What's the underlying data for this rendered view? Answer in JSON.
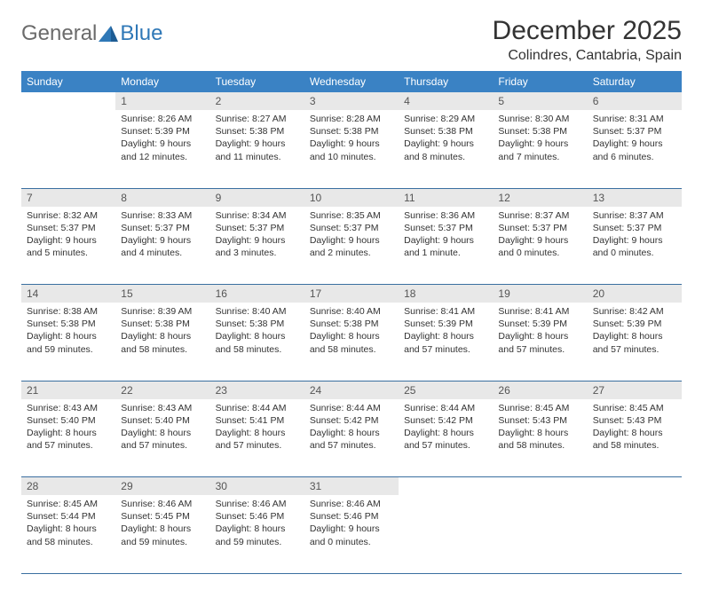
{
  "logo": {
    "text1": "General",
    "text2": "Blue"
  },
  "title": "December 2025",
  "location": "Colindres, Cantabria, Spain",
  "colors": {
    "header_bg": "#3a82c4",
    "header_text": "#ffffff",
    "daynum_bg": "#e8e8e8",
    "row_border": "#3a6fa0",
    "logo_gray": "#6b6b6b",
    "logo_blue": "#2f78b7"
  },
  "day_headers": [
    "Sunday",
    "Monday",
    "Tuesday",
    "Wednesday",
    "Thursday",
    "Friday",
    "Saturday"
  ],
  "weeks": [
    {
      "nums": [
        "",
        "1",
        "2",
        "3",
        "4",
        "5",
        "6"
      ],
      "cells": [
        null,
        {
          "sunrise": "Sunrise: 8:26 AM",
          "sunset": "Sunset: 5:39 PM",
          "day1": "Daylight: 9 hours",
          "day2": "and 12 minutes."
        },
        {
          "sunrise": "Sunrise: 8:27 AM",
          "sunset": "Sunset: 5:38 PM",
          "day1": "Daylight: 9 hours",
          "day2": "and 11 minutes."
        },
        {
          "sunrise": "Sunrise: 8:28 AM",
          "sunset": "Sunset: 5:38 PM",
          "day1": "Daylight: 9 hours",
          "day2": "and 10 minutes."
        },
        {
          "sunrise": "Sunrise: 8:29 AM",
          "sunset": "Sunset: 5:38 PM",
          "day1": "Daylight: 9 hours",
          "day2": "and 8 minutes."
        },
        {
          "sunrise": "Sunrise: 8:30 AM",
          "sunset": "Sunset: 5:38 PM",
          "day1": "Daylight: 9 hours",
          "day2": "and 7 minutes."
        },
        {
          "sunrise": "Sunrise: 8:31 AM",
          "sunset": "Sunset: 5:37 PM",
          "day1": "Daylight: 9 hours",
          "day2": "and 6 minutes."
        }
      ]
    },
    {
      "nums": [
        "7",
        "8",
        "9",
        "10",
        "11",
        "12",
        "13"
      ],
      "cells": [
        {
          "sunrise": "Sunrise: 8:32 AM",
          "sunset": "Sunset: 5:37 PM",
          "day1": "Daylight: 9 hours",
          "day2": "and 5 minutes."
        },
        {
          "sunrise": "Sunrise: 8:33 AM",
          "sunset": "Sunset: 5:37 PM",
          "day1": "Daylight: 9 hours",
          "day2": "and 4 minutes."
        },
        {
          "sunrise": "Sunrise: 8:34 AM",
          "sunset": "Sunset: 5:37 PM",
          "day1": "Daylight: 9 hours",
          "day2": "and 3 minutes."
        },
        {
          "sunrise": "Sunrise: 8:35 AM",
          "sunset": "Sunset: 5:37 PM",
          "day1": "Daylight: 9 hours",
          "day2": "and 2 minutes."
        },
        {
          "sunrise": "Sunrise: 8:36 AM",
          "sunset": "Sunset: 5:37 PM",
          "day1": "Daylight: 9 hours",
          "day2": "and 1 minute."
        },
        {
          "sunrise": "Sunrise: 8:37 AM",
          "sunset": "Sunset: 5:37 PM",
          "day1": "Daylight: 9 hours",
          "day2": "and 0 minutes."
        },
        {
          "sunrise": "Sunrise: 8:37 AM",
          "sunset": "Sunset: 5:37 PM",
          "day1": "Daylight: 9 hours",
          "day2": "and 0 minutes."
        }
      ]
    },
    {
      "nums": [
        "14",
        "15",
        "16",
        "17",
        "18",
        "19",
        "20"
      ],
      "cells": [
        {
          "sunrise": "Sunrise: 8:38 AM",
          "sunset": "Sunset: 5:38 PM",
          "day1": "Daylight: 8 hours",
          "day2": "and 59 minutes."
        },
        {
          "sunrise": "Sunrise: 8:39 AM",
          "sunset": "Sunset: 5:38 PM",
          "day1": "Daylight: 8 hours",
          "day2": "and 58 minutes."
        },
        {
          "sunrise": "Sunrise: 8:40 AM",
          "sunset": "Sunset: 5:38 PM",
          "day1": "Daylight: 8 hours",
          "day2": "and 58 minutes."
        },
        {
          "sunrise": "Sunrise: 8:40 AM",
          "sunset": "Sunset: 5:38 PM",
          "day1": "Daylight: 8 hours",
          "day2": "and 58 minutes."
        },
        {
          "sunrise": "Sunrise: 8:41 AM",
          "sunset": "Sunset: 5:39 PM",
          "day1": "Daylight: 8 hours",
          "day2": "and 57 minutes."
        },
        {
          "sunrise": "Sunrise: 8:41 AM",
          "sunset": "Sunset: 5:39 PM",
          "day1": "Daylight: 8 hours",
          "day2": "and 57 minutes."
        },
        {
          "sunrise": "Sunrise: 8:42 AM",
          "sunset": "Sunset: 5:39 PM",
          "day1": "Daylight: 8 hours",
          "day2": "and 57 minutes."
        }
      ]
    },
    {
      "nums": [
        "21",
        "22",
        "23",
        "24",
        "25",
        "26",
        "27"
      ],
      "cells": [
        {
          "sunrise": "Sunrise: 8:43 AM",
          "sunset": "Sunset: 5:40 PM",
          "day1": "Daylight: 8 hours",
          "day2": "and 57 minutes."
        },
        {
          "sunrise": "Sunrise: 8:43 AM",
          "sunset": "Sunset: 5:40 PM",
          "day1": "Daylight: 8 hours",
          "day2": "and 57 minutes."
        },
        {
          "sunrise": "Sunrise: 8:44 AM",
          "sunset": "Sunset: 5:41 PM",
          "day1": "Daylight: 8 hours",
          "day2": "and 57 minutes."
        },
        {
          "sunrise": "Sunrise: 8:44 AM",
          "sunset": "Sunset: 5:42 PM",
          "day1": "Daylight: 8 hours",
          "day2": "and 57 minutes."
        },
        {
          "sunrise": "Sunrise: 8:44 AM",
          "sunset": "Sunset: 5:42 PM",
          "day1": "Daylight: 8 hours",
          "day2": "and 57 minutes."
        },
        {
          "sunrise": "Sunrise: 8:45 AM",
          "sunset": "Sunset: 5:43 PM",
          "day1": "Daylight: 8 hours",
          "day2": "and 58 minutes."
        },
        {
          "sunrise": "Sunrise: 8:45 AM",
          "sunset": "Sunset: 5:43 PM",
          "day1": "Daylight: 8 hours",
          "day2": "and 58 minutes."
        }
      ]
    },
    {
      "nums": [
        "28",
        "29",
        "30",
        "31",
        "",
        "",
        ""
      ],
      "cells": [
        {
          "sunrise": "Sunrise: 8:45 AM",
          "sunset": "Sunset: 5:44 PM",
          "day1": "Daylight: 8 hours",
          "day2": "and 58 minutes."
        },
        {
          "sunrise": "Sunrise: 8:46 AM",
          "sunset": "Sunset: 5:45 PM",
          "day1": "Daylight: 8 hours",
          "day2": "and 59 minutes."
        },
        {
          "sunrise": "Sunrise: 8:46 AM",
          "sunset": "Sunset: 5:46 PM",
          "day1": "Daylight: 8 hours",
          "day2": "and 59 minutes."
        },
        {
          "sunrise": "Sunrise: 8:46 AM",
          "sunset": "Sunset: 5:46 PM",
          "day1": "Daylight: 9 hours",
          "day2": "and 0 minutes."
        },
        null,
        null,
        null
      ]
    }
  ]
}
